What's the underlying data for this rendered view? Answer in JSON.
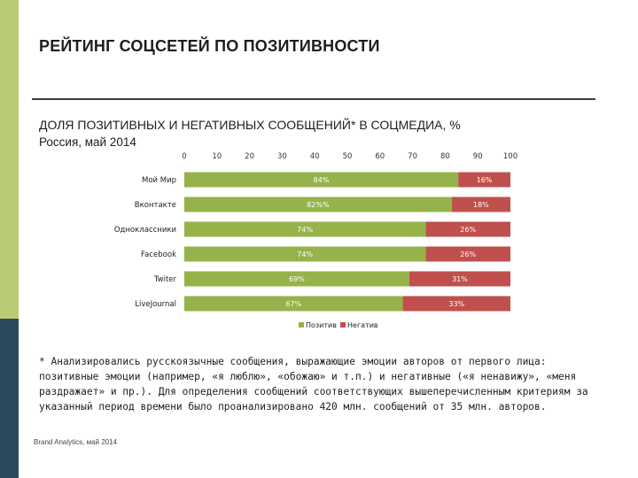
{
  "page": {
    "title": "РЕЙТИНГ СОЦСЕТЕЙ ПО ПОЗИТИВНОСТИ",
    "footnote": "* Анализировались русскоязычные сообщения, выражающие эмоции авторов от первого лица: позитивные эмоции (например, «я люблю», «обожаю» и т.п.) и негативные («я ненавижу», «меня раздражает» и пр.). Для определения сообщений соответствующих вышеперечисленным критериям за указанный период времени было проанализировано 420 млн. сообщений от 35 млн. авторов.",
    "source": "Brand Analytics, май 2014"
  },
  "colors": {
    "positive": "#95b34a",
    "negative": "#c0504d",
    "sidebar_top": "#b9cc74",
    "sidebar_bottom": "#2b4a5e"
  },
  "chart_data": {
    "type": "bar",
    "orientation": "horizontal",
    "stacked": true,
    "title": "ДОЛЯ ПОЗИТИВНЫХ И НЕГАТИВНЫХ СООБЩЕНИЙ* В СОЦМЕДИА, %",
    "subtitle": "Россия, май 2014",
    "categories": [
      "Мой Мир",
      "Вконтакте",
      "Одноклассники",
      "Facebook",
      "Twiter",
      "LiveJournal"
    ],
    "series": [
      {
        "name": "Позитив",
        "values": [
          84,
          82,
          74,
          74,
          69,
          67
        ],
        "labels": [
          "84%",
          "82%%",
          "74%",
          "74%",
          "69%",
          "67%"
        ]
      },
      {
        "name": "Негатив",
        "values": [
          16,
          18,
          26,
          26,
          31,
          33
        ],
        "labels": [
          "16%",
          "18%",
          "26%",
          "26%",
          "31%",
          "33%"
        ]
      }
    ],
    "xlim": [
      0,
      100
    ],
    "xticks": [
      "0",
      "10",
      "20",
      "30",
      "40",
      "50",
      "60",
      "70",
      "80",
      "90",
      "100"
    ],
    "axis_position": "top",
    "legend": "bottom",
    "grid": false
  }
}
